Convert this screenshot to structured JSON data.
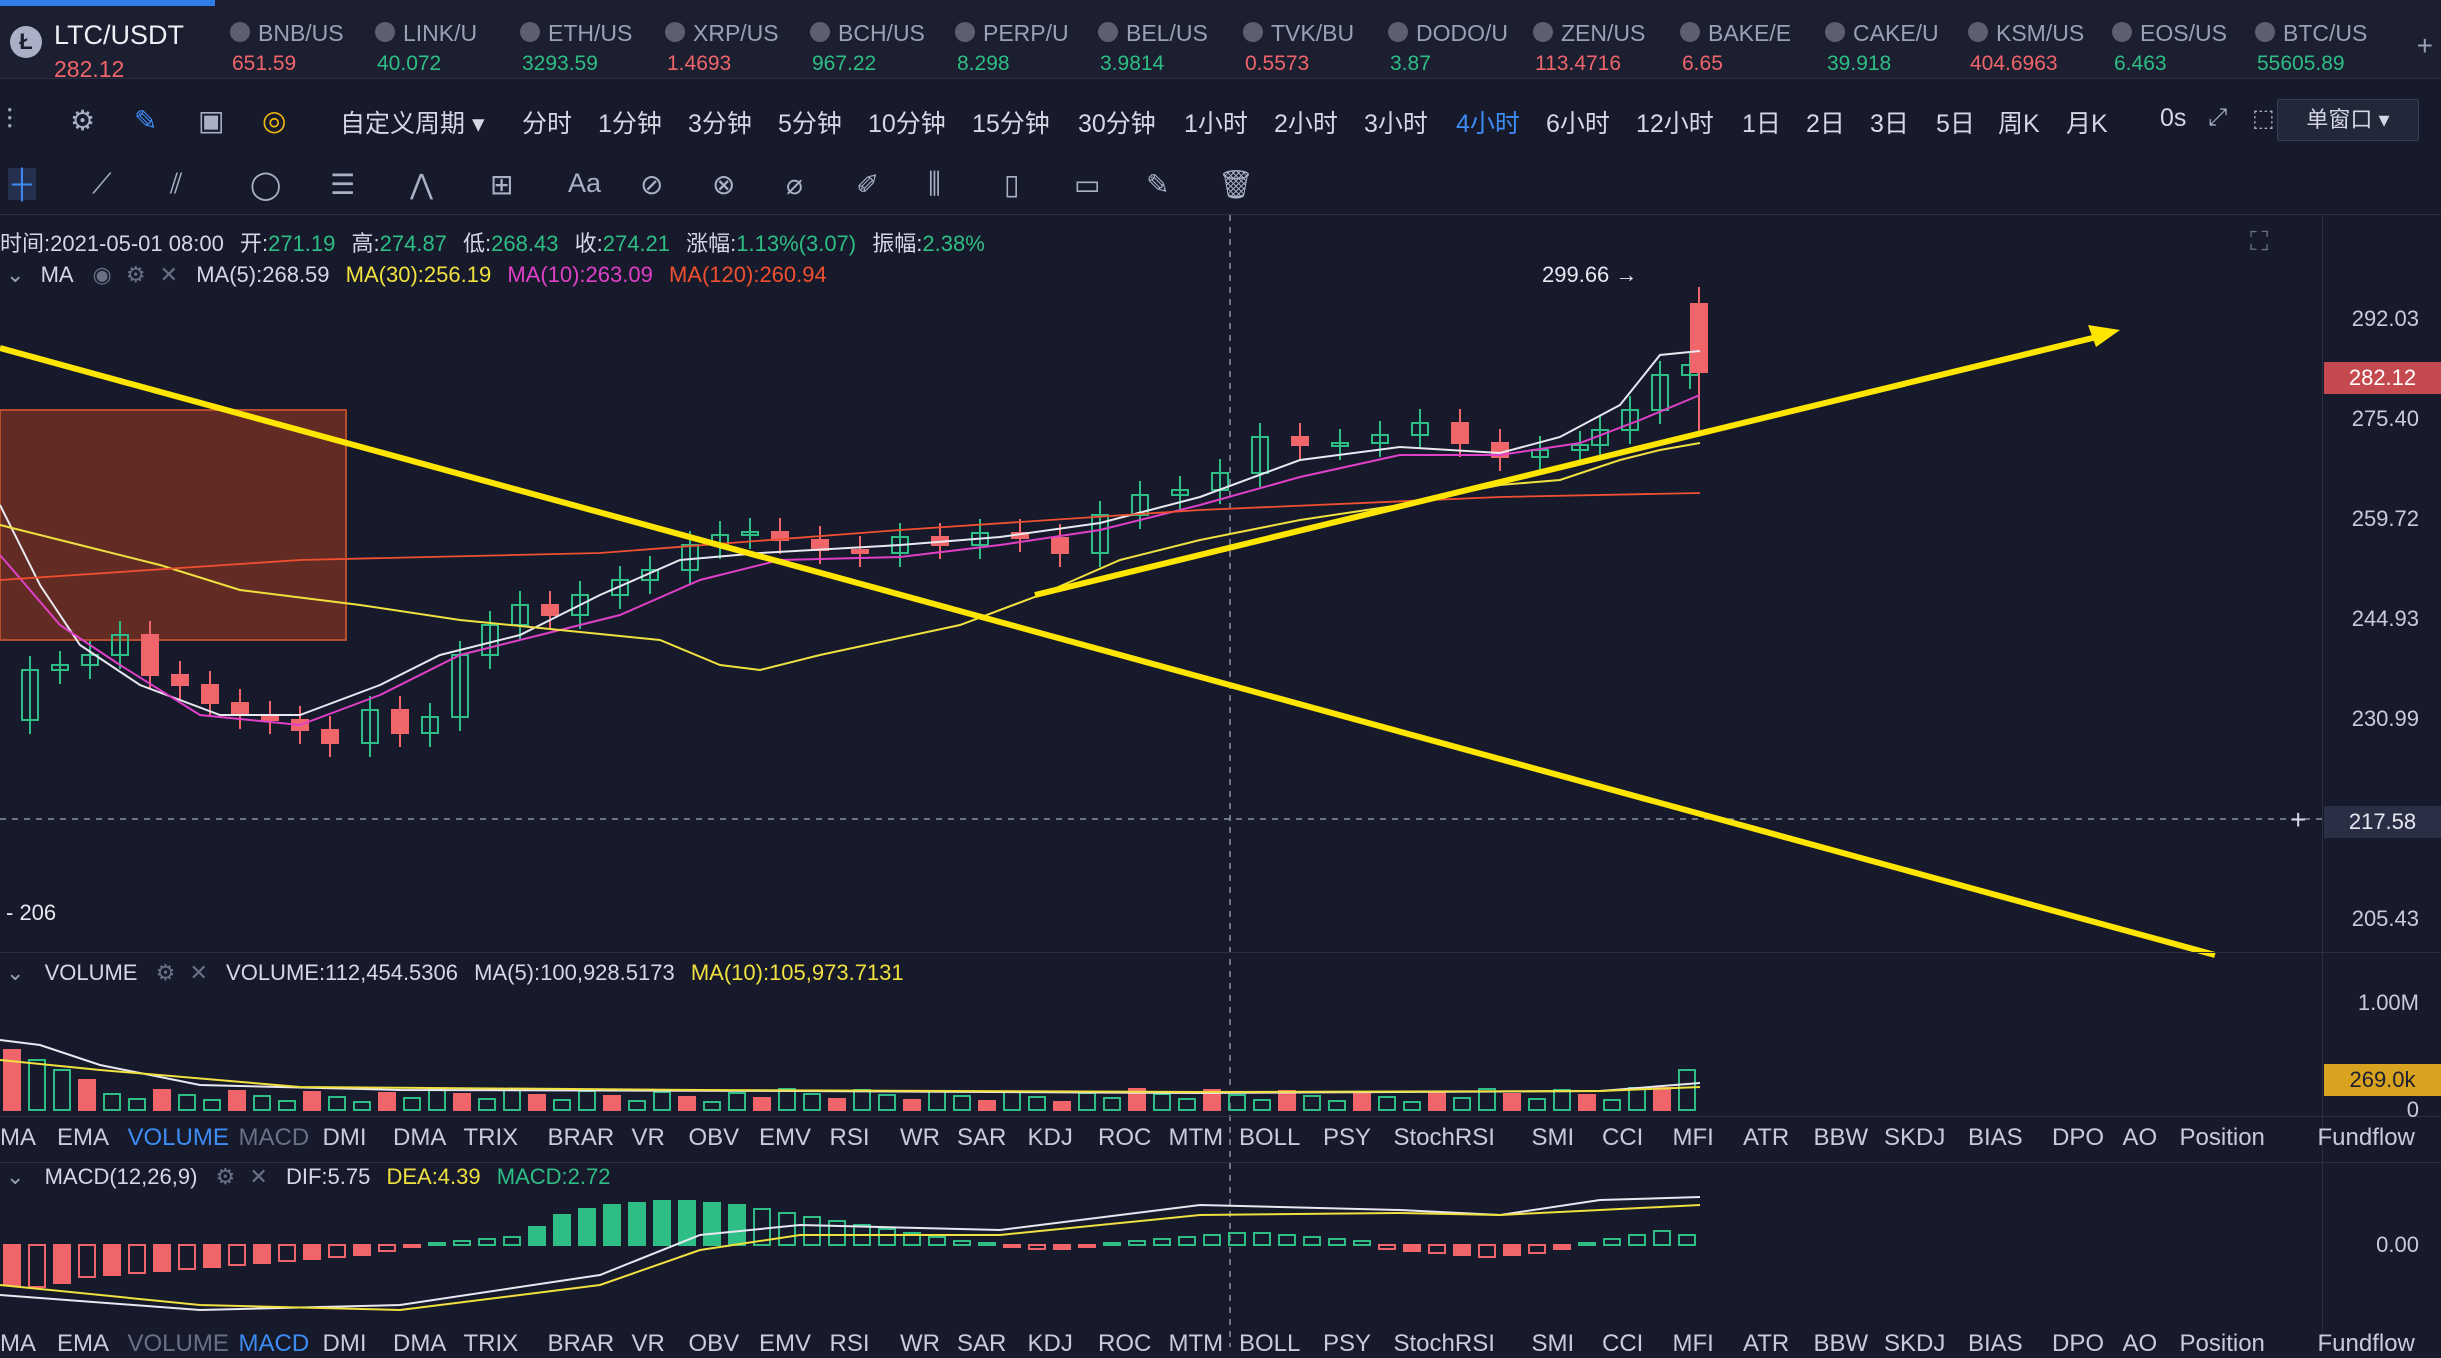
{
  "ticker": {
    "main": {
      "symbol": "LTC/USDT",
      "price": "282.12"
    },
    "items": [
      {
        "name": "BNB/US",
        "price": "651.59",
        "color": "#f0656a"
      },
      {
        "name": "LINK/U",
        "price": "40.072",
        "color": "#2ebd85"
      },
      {
        "name": "ETH/US",
        "price": "3293.59",
        "color": "#2ebd85"
      },
      {
        "name": "XRP/US",
        "price": "1.4693",
        "color": "#f0656a"
      },
      {
        "name": "BCH/US",
        "price": "967.22",
        "color": "#2ebd85"
      },
      {
        "name": "PERP/U",
        "price": "8.298",
        "color": "#2ebd85"
      },
      {
        "name": "BEL/US",
        "price": "3.9814",
        "color": "#2ebd85"
      },
      {
        "name": "TVK/BU",
        "price": "0.5573",
        "color": "#f0656a"
      },
      {
        "name": "DODO/U",
        "price": "3.87",
        "color": "#2ebd85"
      },
      {
        "name": "ZEN/US",
        "price": "113.4716",
        "color": "#f0656a"
      },
      {
        "name": "BAKE/E",
        "price": "6.65",
        "color": "#f0656a"
      },
      {
        "name": "CAKE/U",
        "price": "39.918",
        "color": "#2ebd85"
      },
      {
        "name": "KSM/US",
        "price": "404.6963",
        "color": "#f0656a"
      },
      {
        "name": "EOS/US",
        "price": "6.463",
        "color": "#2ebd85"
      },
      {
        "name": "BTC/US",
        "price": "55605.89",
        "color": "#2ebd85"
      }
    ],
    "add_icon": "+"
  },
  "periods": {
    "custom": "自定义周期 ▾",
    "items": [
      "分时",
      "1分钟",
      "3分钟",
      "5分钟",
      "10分钟",
      "15分钟",
      "30分钟",
      "1小时",
      "2小时",
      "3小时",
      "4小时",
      "6小时",
      "12小时",
      "1日",
      "2日",
      "3日",
      "5日",
      "周K",
      "月K"
    ],
    "active_index": 10,
    "timer": "0s",
    "mode": "单窗口 ▾"
  },
  "candle_info": {
    "time_label": "时间:2021-05-01 08:00",
    "open_label": "开:",
    "open": "271.19",
    "high_label": "高:",
    "high": "274.87",
    "low_label": "低:",
    "low": "268.43",
    "close_label": "收:",
    "close": "274.21",
    "change_label": "涨幅:",
    "change": "1.13%(3.07)",
    "amp_label": "振幅:",
    "amp": "2.38%"
  },
  "ma_legend": {
    "name": "MA",
    "ma5": "MA(5):268.59",
    "ma30": "MA(30):256.19",
    "ma10": "MA(10):263.09",
    "ma120": "MA(120):260.94"
  },
  "price_axis": {
    "labels": [
      "292.03",
      "275.40",
      "259.72",
      "244.93",
      "230.99",
      "217.58",
      "205.43"
    ],
    "current": "282.12",
    "high_marker": "299.66 →",
    "low_marker": "- 206",
    "crosshair_plus": "+"
  },
  "volume": {
    "name": "VOLUME",
    "value": "VOLUME:112,454.5306",
    "ma5": "MA(5):100,928.5173",
    "ma10": "MA(10):105,973.7131",
    "axis_top": "1.00M",
    "axis_zero": "0",
    "current": "269.0k"
  },
  "indicators": [
    "MA",
    "EMA",
    "VOLUME",
    "MACD",
    "DMI",
    "DMA",
    "TRIX",
    "BRAR",
    "VR",
    "OBV",
    "EMV",
    "RSI",
    "WR",
    "SAR",
    "KDJ",
    "ROC",
    "MTM",
    "BOLL",
    "PSY",
    "StochRSI",
    "SMI",
    "CCI",
    "MFI",
    "ATR",
    "BBW",
    "SKDJ",
    "BIAS",
    "DPO",
    "AO",
    "Position",
    "Fundflow"
  ],
  "macd": {
    "name": "MACD(12,26,9)",
    "dif": "DIF:5.75",
    "dea": "DEA:4.39",
    "macd": "MACD:2.72",
    "axis_zero": "0.00"
  },
  "colors": {
    "up": "#2ebd85",
    "down": "#f0656a",
    "accent": "#3d8cf5",
    "trend": "#ffe600",
    "ma5": "#e8e8f0",
    "ma10": "#e040c8",
    "ma30": "#f0e040",
    "ma120": "#f05030"
  }
}
